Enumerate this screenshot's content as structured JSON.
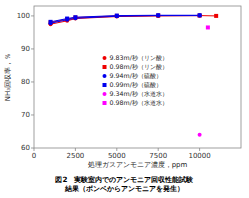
{
  "chart_data": {
    "type": "line",
    "xlabel": "処理ガスアンモニア濃度，ppm",
    "ylabel": "NH₃回収率，％",
    "caption": [
      "図2　実験室内でのアンモニア回収性能試験",
      "結果（ボンベからアンモニアを発生）"
    ],
    "xlim": [
      0,
      12500
    ],
    "ylim": [
      60,
      103
    ],
    "xticks": [
      0,
      2500,
      5000,
      7500,
      10000
    ],
    "yticks": [
      60,
      70,
      80,
      90,
      100
    ],
    "grid": false,
    "legend": "center",
    "series": [
      {
        "name": "9.83m/秒（リン酸）",
        "color": "#ee0000",
        "marker": "circle",
        "line_style": "solid",
        "x": [
          1000,
          2000,
          2500,
          5000,
          7500,
          10000
        ],
        "values": [
          97.5,
          98.5,
          99.2,
          99.8,
          100.0,
          100.1
        ]
      },
      {
        "name": "0.98m/秒（リン酸）",
        "color": "#ee0000",
        "marker": "square",
        "line_style": "solid",
        "x": [
          1000,
          2000,
          2500,
          5000,
          7500,
          10000,
          11000
        ],
        "values": [
          98.0,
          99.0,
          99.5,
          100.0,
          100.1,
          100.1,
          100.0
        ]
      },
      {
        "name": "9.94m/秒（硫酸）",
        "color": "#0000ee",
        "marker": "circle",
        "line_style": "solid",
        "x": [
          1000,
          2000,
          2500,
          5000,
          7500,
          10000
        ],
        "values": [
          97.8,
          98.8,
          99.3,
          99.9,
          100.1,
          100.1
        ]
      },
      {
        "name": "0.99m/秒（硫酸）",
        "color": "#0000ee",
        "marker": "square",
        "line_style": "solid",
        "x": [
          1000,
          2000,
          2500,
          5000,
          7500,
          10000
        ],
        "values": [
          98.2,
          99.2,
          99.6,
          100.1,
          100.2,
          100.2
        ]
      },
      {
        "name": "9.34m/秒（水道水）",
        "color": "#ff00ff",
        "marker": "circle",
        "line_style": "none",
        "x": [
          10000
        ],
        "values": [
          64.0
        ]
      },
      {
        "name": "0.98m/秒（水道水）",
        "color": "#ff00ff",
        "marker": "square",
        "line_style": "none",
        "x": [
          10500
        ],
        "values": [
          96.5
        ]
      }
    ]
  }
}
